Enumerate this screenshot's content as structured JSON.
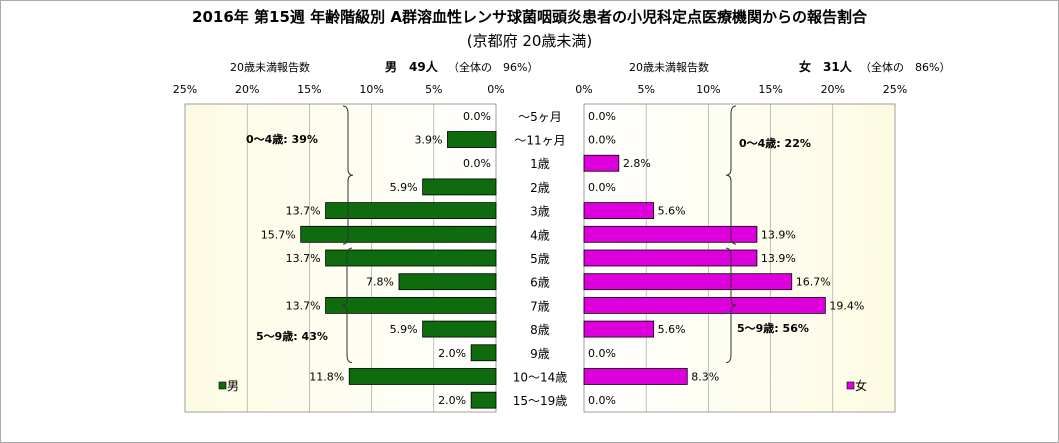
{
  "title": "2016年 第15週 年齢階級別 A群溶血性レンサ球菌咽頭炎患者の小児科定点医療機関からの報告割合",
  "subtitle": "(京都府 20歳未満)",
  "chart_data": {
    "type": "bar",
    "orientation": "horizontal-population-pyramid",
    "categories": [
      "〜5ヶ月",
      "〜11ヶ月",
      "1歳",
      "2歳",
      "3歳",
      "4歳",
      "5歳",
      "6歳",
      "7歳",
      "8歳",
      "9歳",
      "10〜14歳",
      "15〜19歳"
    ],
    "axis_ticks": [
      "25%",
      "20%",
      "15%",
      "10%",
      "5%",
      "0%"
    ],
    "axis_ticks_right": [
      "0%",
      "5%",
      "10%",
      "15%",
      "20%",
      "25%"
    ],
    "xlim": [
      0,
      25
    ],
    "grid": "vertical",
    "series": [
      {
        "name": "男",
        "side": "left",
        "color": "#0e6b0e",
        "header_label": "20歳未満報告数",
        "header_count": "男　49人",
        "header_ratio": "（全体の　96%）",
        "values": [
          0.0,
          3.9,
          0.0,
          5.9,
          13.7,
          15.7,
          13.7,
          7.8,
          13.7,
          5.9,
          2.0,
          11.8,
          2.0
        ],
        "labels": [
          "0.0%",
          "3.9%",
          "0.0%",
          "5.9%",
          "13.7%",
          "15.7%",
          "13.7%",
          "7.8%",
          "13.7%",
          "5.9%",
          "2.0%",
          "11.8%",
          "2.0%"
        ],
        "group_labels": [
          "0〜4歳: 39%",
          "5〜9歳: 43%"
        ]
      },
      {
        "name": "女",
        "side": "right",
        "color": "#dd00dd",
        "header_label": "20歳未満報告数",
        "header_count": "女　31人",
        "header_ratio": "（全体の　86%）",
        "values": [
          0.0,
          0.0,
          2.8,
          0.0,
          5.6,
          13.9,
          13.9,
          16.7,
          19.4,
          5.6,
          0.0,
          8.3,
          0.0
        ],
        "labels": [
          "0.0%",
          "0.0%",
          "2.8%",
          "0.0%",
          "5.6%",
          "13.9%",
          "13.9%",
          "16.7%",
          "19.4%",
          "5.6%",
          "0.0%",
          "8.3%",
          "0.0%"
        ],
        "group_labels": [
          "0〜4歳: 22%",
          "5〜9歳: 56%"
        ]
      }
    ],
    "legend": "bottom-inside-each-panel"
  }
}
